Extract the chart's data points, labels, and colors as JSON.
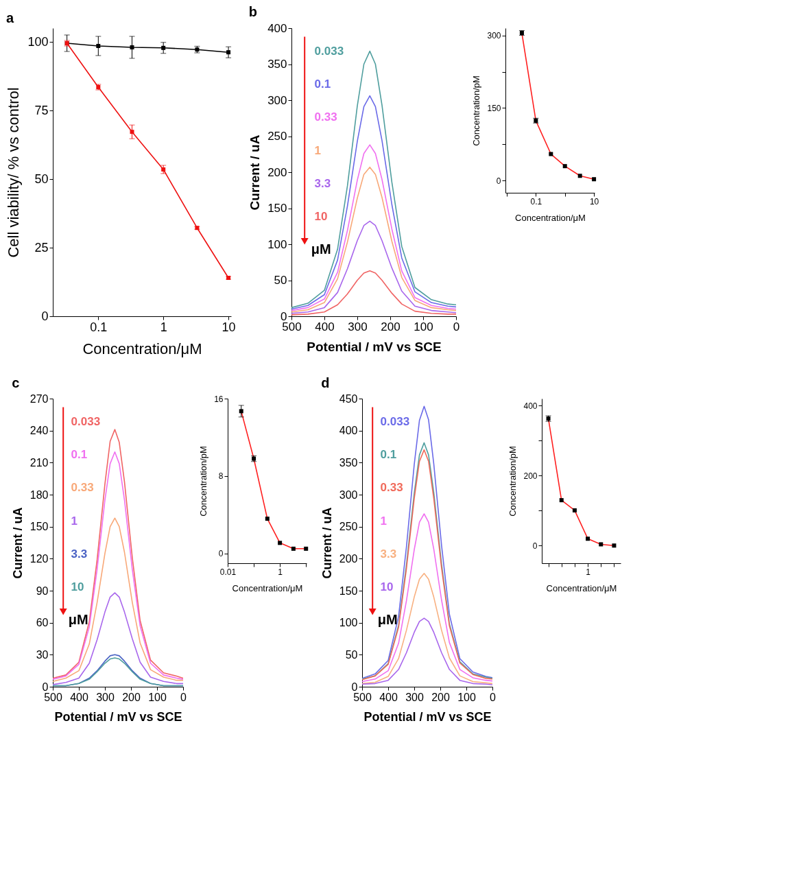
{
  "chart_data": [
    {
      "type": "line",
      "title": "a",
      "xlabel": "Concentration/μM",
      "ylabel": "Cell viability/ % vs control",
      "log": "x",
      "marker": "square",
      "xlim": [
        0.02,
        11
      ],
      "xticks": [
        0.1,
        1,
        10
      ],
      "ylim": [
        0,
        105
      ],
      "yticks": [
        0,
        25,
        50,
        75,
        100
      ],
      "x": [
        0.033,
        0.1,
        0.33,
        1,
        3.3,
        10
      ],
      "series": [
        {
          "color": "#000000",
          "values": [
            99.5,
            98.5,
            98,
            97.8,
            97.2,
            96.2
          ],
          "errors": [
            3,
            3.5,
            4,
            2,
            1.2,
            2
          ]
        },
        {
          "color": "#ee1111",
          "values": [
            99.5,
            83.5,
            67.2,
            53.5,
            32.2,
            14
          ],
          "errors": [
            1,
            1,
            2.5,
            1.5,
            0.5,
            0.5
          ]
        }
      ]
    },
    {
      "type": "line",
      "title": "b",
      "xlabel": "Potential / mV vs SCE",
      "ylabel": "Current / uA",
      "xlim": [
        500,
        0
      ],
      "xticks": [
        500,
        400,
        300,
        200,
        100,
        0
      ],
      "ylim": [
        0,
        400
      ],
      "yticks": [
        0,
        50,
        100,
        150,
        200,
        250,
        300,
        350,
        400
      ],
      "annotations": [
        "μM"
      ],
      "x": [
        500,
        450,
        400,
        360,
        330,
        300,
        280,
        262,
        245,
        225,
        195,
        165,
        125,
        75,
        25,
        0
      ],
      "series": [
        {
          "name": "0.033",
          "color": "#4f9e9e",
          "values": [
            12,
            18,
            36,
            93,
            181,
            292,
            350,
            368,
            350,
            293,
            186,
            97,
            40,
            23,
            17,
            16
          ]
        },
        {
          "name": "0.1",
          "color": "#6a6ae8",
          "values": [
            10,
            15,
            30,
            78,
            153,
            243,
            291,
            306,
            291,
            244,
            155,
            81,
            34,
            19,
            14,
            13
          ]
        },
        {
          "name": "0.33",
          "color": "#f070f0",
          "values": [
            8,
            12,
            24,
            61,
            119,
            189,
            226,
            238,
            226,
            190,
            121,
            63,
            26,
            15,
            11,
            10
          ]
        },
        {
          "name": "1",
          "color": "#f8a878",
          "values": [
            6,
            9,
            19,
            52,
            103,
            164,
            197,
            207,
            197,
            165,
            104,
            54,
            22,
            12,
            9,
            8
          ]
        },
        {
          "name": "3.3",
          "color": "#a866ec",
          "values": [
            4,
            6,
            12,
            33,
            66,
            105,
            126,
            132,
            126,
            105,
            67,
            35,
            14,
            8,
            6,
            5
          ]
        },
        {
          "name": "10",
          "color": "#f06464",
          "values": [
            2,
            3,
            6,
            16,
            31,
            50,
            60,
            63,
            60,
            50,
            32,
            17,
            7,
            4,
            3,
            3
          ]
        }
      ]
    },
    {
      "type": "line",
      "xlabel": "Concentration/μM",
      "ylabel": "Concentration/pM",
      "log": "x",
      "xlim": [
        0.009,
        10.5
      ],
      "xticks": [
        {
          "value": 0.01,
          "label": null
        },
        0.1,
        {
          "value": 1,
          "label": null
        },
        10
      ],
      "ylim": [
        -25,
        315
      ],
      "yticks": [
        0,
        {
          "value": 75,
          "label": null
        },
        150,
        {
          "value": 225,
          "label": null
        },
        300
      ],
      "x": [
        0.033,
        0.1,
        0.33,
        1,
        3.3,
        10
      ],
      "series": [
        {
          "type": "line",
          "color": "#ff2020",
          "values": [
            305,
            124,
            55,
            30,
            10,
            3
          ]
        },
        {
          "type": "scatter",
          "marker": "square",
          "color": "#000000",
          "values": [
            305,
            124,
            55,
            30,
            10,
            3
          ],
          "errors": [
            5,
            5,
            null,
            null,
            null,
            null
          ]
        }
      ]
    },
    {
      "type": "line",
      "title": "c",
      "xlabel": "Potential / mV vs SCE",
      "ylabel": "Current / uA",
      "xlim": [
        500,
        0
      ],
      "xticks": [
        500,
        400,
        300,
        200,
        100,
        0
      ],
      "ylim": [
        0,
        270
      ],
      "yticks": [
        0,
        30,
        60,
        90,
        120,
        150,
        180,
        210,
        240,
        270
      ],
      "annotations": [
        "μM"
      ],
      "x": [
        500,
        450,
        400,
        360,
        330,
        300,
        280,
        262,
        245,
        225,
        195,
        165,
        125,
        75,
        25,
        0
      ],
      "series": [
        {
          "name": "0.033",
          "color": "#f06464",
          "values": [
            8,
            11,
            23,
            61,
            119,
            190,
            230,
            241,
            229,
            192,
            121,
            62,
            25,
            13,
            10,
            8
          ]
        },
        {
          "name": "0.1",
          "color": "#f070f0",
          "values": [
            7,
            10,
            21,
            56,
            110,
            175,
            209,
            220,
            209,
            175,
            110,
            57,
            22,
            11,
            8,
            7
          ]
        },
        {
          "name": "0.33",
          "color": "#f8a878",
          "values": [
            5,
            8,
            15,
            40,
            79,
            125,
            150,
            158,
            150,
            126,
            79,
            41,
            16,
            9,
            6,
            6
          ]
        },
        {
          "name": "1",
          "color": "#a866ec",
          "values": [
            2,
            4,
            8,
            22,
            44,
            70,
            84,
            88,
            84,
            70,
            45,
            23,
            9,
            5,
            3,
            3
          ]
        },
        {
          "name": "3.3",
          "color": "#4a62c4",
          "values": [
            1,
            1,
            3,
            8,
            15,
            24,
            29,
            30,
            29,
            24,
            15,
            8,
            3,
            1,
            1,
            1
          ]
        },
        {
          "name": "10",
          "color": "#4f9e9e",
          "values": [
            1,
            1,
            3,
            7,
            14,
            22,
            26,
            27,
            26,
            22,
            14,
            7,
            3,
            1,
            1,
            1
          ]
        }
      ]
    },
    {
      "type": "line",
      "xlabel": "Concentration/μM",
      "ylabel": "Concentration/pM",
      "log": "x",
      "xlim": [
        0.01,
        10.5
      ],
      "xticks": [
        0.01,
        {
          "value": 0.1,
          "label": null
        },
        1,
        {
          "value": 10,
          "label": null
        }
      ],
      "ylim": [
        -1,
        16
      ],
      "yticks": [
        0,
        8,
        16
      ],
      "x": [
        0.033,
        0.1,
        0.33,
        1,
        3.3,
        10
      ],
      "series": [
        {
          "type": "line",
          "color": "#ff2020",
          "values": [
            14.7,
            9.8,
            3.6,
            1.1,
            0.5,
            0.5
          ]
        },
        {
          "type": "scatter",
          "marker": "square",
          "color": "#000000",
          "values": [
            14.7,
            9.8,
            3.6,
            1.1,
            0.5,
            0.5
          ],
          "errors": [
            0.6,
            0.3,
            null,
            null,
            null,
            null
          ]
        }
      ]
    },
    {
      "type": "line",
      "title": "d",
      "xlabel": "Potential / mV vs SCE",
      "ylabel": "Current / uA",
      "xlim": [
        500,
        0
      ],
      "xticks": [
        500,
        400,
        300,
        200,
        100,
        0
      ],
      "ylim": [
        0,
        450
      ],
      "yticks": [
        0,
        50,
        100,
        150,
        200,
        250,
        300,
        350,
        400,
        450
      ],
      "annotations": [
        "μM"
      ],
      "x": [
        500,
        450,
        400,
        360,
        330,
        300,
        280,
        262,
        245,
        225,
        195,
        165,
        125,
        75,
        25,
        0
      ],
      "series": [
        {
          "name": "0.033",
          "color": "#6a6ae8",
          "values": [
            13,
            20,
            41,
            110,
            218,
            347,
            416,
            438,
            417,
            348,
            220,
            113,
            44,
            23,
            16,
            14
          ]
        },
        {
          "name": "0.1",
          "color": "#4f9e9e",
          "values": [
            12,
            17,
            36,
            96,
            190,
            302,
            362,
            381,
            362,
            303,
            191,
            98,
            39,
            20,
            15,
            13
          ]
        },
        {
          "name": "0.33",
          "color": "#f06a5a",
          "values": [
            11,
            17,
            35,
            93,
            184,
            294,
            352,
            370,
            352,
            294,
            185,
            95,
            37,
            19,
            13,
            12
          ]
        },
        {
          "name": "1",
          "color": "#f070f0",
          "values": [
            8,
            12,
            25,
            68,
            134,
            214,
            257,
            270,
            257,
            215,
            135,
            69,
            27,
            14,
            10,
            9
          ]
        },
        {
          "name": "3.3",
          "color": "#f8b080",
          "values": [
            5,
            7,
            16,
            44,
            88,
            140,
            168,
            177,
            168,
            140,
            88,
            45,
            17,
            8,
            6,
            5
          ]
        },
        {
          "name": "10",
          "color": "#a866ec",
          "values": [
            4,
            5,
            10,
            27,
            53,
            85,
            102,
            107,
            102,
            85,
            53,
            27,
            10,
            5,
            4,
            3
          ]
        }
      ]
    },
    {
      "type": "line",
      "xlabel": "Concentration/μM",
      "ylabel": "Concentration/pM",
      "ylim": [
        -50,
        420
      ],
      "yticks": [
        0,
        {
          "value": 100,
          "label": null
        },
        200,
        {
          "value": 300,
          "label": null
        },
        400
      ],
      "categories": [
        null,
        null,
        null,
        "1",
        null,
        null
      ],
      "series": [
        {
          "type": "line",
          "color": "#ff2020",
          "values": [
            363,
            130,
            101,
            20,
            4,
            0.5
          ]
        },
        {
          "type": "scatter",
          "marker": "square",
          "color": "#000000",
          "values": [
            363,
            130,
            101,
            20,
            4,
            0.5
          ],
          "errors": [
            8,
            null,
            null,
            null,
            null,
            null
          ]
        }
      ]
    }
  ]
}
